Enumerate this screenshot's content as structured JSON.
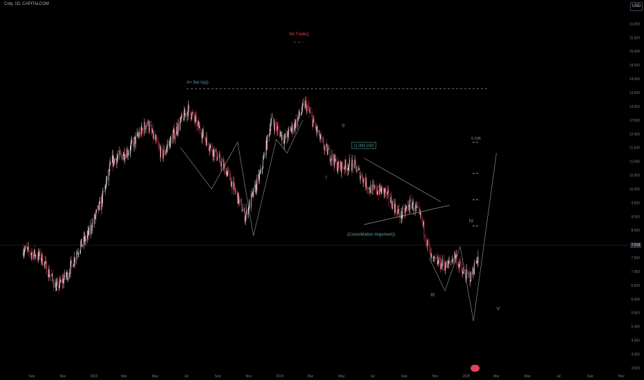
{
  "header": {
    "symbol_label": "Coty, 1D, CAPITALCOM",
    "currency_button": "USD"
  },
  "price_axis": {
    "ticks": [
      "16.000",
      "15.500",
      "15.000",
      "14.500",
      "14.000",
      "13.500",
      "13.000",
      "12.500",
      "12.000",
      "11.500",
      "11.000",
      "10.500",
      "10.000",
      "9.500",
      "9.000",
      "8.500",
      "8.000",
      "7.500",
      "7.000",
      "6.500",
      "6.000",
      "5.500",
      "5.000",
      "4.500",
      "4.000",
      "3.500"
    ],
    "current_price": "7.618"
  },
  "time_axis": {
    "labels": [
      "Sep",
      "Nov",
      "2023",
      "Mar",
      "May",
      "Jul",
      "Sep",
      "Nov",
      "2024",
      "Mar",
      "May",
      "Jul",
      "Sep",
      "Nov",
      "2025",
      "Mar",
      "May",
      "Jul",
      "Sep",
      "Nov"
    ]
  },
  "annotations": {
    "no_trade": "No Trade))",
    "a_setup": "A+ Set Up))",
    "price_label": "11.000 USD",
    "fib_label": "0.236",
    "consolidation": "(Consolidation Argument))",
    "wave_1": "I",
    "wave_2": "II",
    "wave_3": "III",
    "wave_4": "IV",
    "wave_5": "V"
  },
  "colors": {
    "background": "#000000",
    "candle_up": "#ffffff",
    "candle_down": "#e0445a",
    "zigzag": "#8a8a8a",
    "label_teal": "#5fa8b0",
    "label_red": "#e0445a",
    "label_green": "#7ca87c"
  },
  "chart_data": {
    "type": "candlestick",
    "title": "Coty, 1D, CAPITALCOM",
    "ylabel": "USD",
    "ylim": [
      3.5,
      16.25
    ],
    "current_price": 7.618,
    "close_path": [
      {
        "x": "2022-08-15",
        "y": 7.8
      },
      {
        "x": "2022-09-20",
        "y": 7.5
      },
      {
        "x": "2022-10-20",
        "y": 6.4
      },
      {
        "x": "2022-11-10",
        "y": 6.9
      },
      {
        "x": "2022-12-01",
        "y": 7.8
      },
      {
        "x": "2022-12-20",
        "y": 8.3
      },
      {
        "x": "2023-01-15",
        "y": 9.5
      },
      {
        "x": "2023-02-05",
        "y": 11.0
      },
      {
        "x": "2023-03-10",
        "y": 11.4
      },
      {
        "x": "2023-04-15",
        "y": 12.4
      },
      {
        "x": "2023-05-15",
        "y": 11.2
      },
      {
        "x": "2023-06-25",
        "y": 12.6
      },
      {
        "x": "2023-07-05",
        "y": 12.9
      },
      {
        "x": "2023-08-15",
        "y": 11.6
      },
      {
        "x": "2023-09-20",
        "y": 10.6
      },
      {
        "x": "2023-10-25",
        "y": 9.0
      },
      {
        "x": "2023-11-25",
        "y": 10.6
      },
      {
        "x": "2023-12-15",
        "y": 12.5
      },
      {
        "x": "2024-01-10",
        "y": 11.8
      },
      {
        "x": "2024-02-01",
        "y": 12.4
      },
      {
        "x": "2024-02-20",
        "y": 13.1
      },
      {
        "x": "2024-03-25",
        "y": 11.6
      },
      {
        "x": "2024-04-25",
        "y": 10.8
      },
      {
        "x": "2024-05-25",
        "y": 10.9
      },
      {
        "x": "2024-06-25",
        "y": 10.0
      },
      {
        "x": "2024-07-25",
        "y": 9.9
      },
      {
        "x": "2024-08-25",
        "y": 9.0
      },
      {
        "x": "2024-09-15",
        "y": 9.5
      },
      {
        "x": "2024-10-05",
        "y": 8.9
      },
      {
        "x": "2024-10-25",
        "y": 7.4
      },
      {
        "x": "2024-11-25",
        "y": 7.2
      },
      {
        "x": "2024-12-10",
        "y": 7.6
      },
      {
        "x": "2024-12-25",
        "y": 6.9
      },
      {
        "x": "2025-01-10",
        "y": 6.8
      },
      {
        "x": "2025-01-25",
        "y": 7.6
      }
    ],
    "zigzag_waves": [
      {
        "x": "2023-06-20",
        "y": 11.5
      },
      {
        "x": "2023-08-20",
        "y": 10.0
      },
      {
        "x": "2023-10-10",
        "y": 11.7
      },
      {
        "x": "2023-11-10",
        "y": 8.3
      },
      {
        "x": "2023-12-25",
        "y": 11.8
      },
      {
        "x": "2024-01-15",
        "y": 11.3
      },
      {
        "x": "2024-02-15",
        "y": 12.5
      }
    ],
    "projection": [
      {
        "x": "2024-10-20",
        "y": 7.5
      },
      {
        "x": "2024-11-20",
        "y": 6.3
      },
      {
        "x": "2024-12-20",
        "y": 7.9
      },
      {
        "x": "2025-01-15",
        "y": 5.2
      },
      {
        "x": "2025-03-01",
        "y": 11.3
      }
    ],
    "levels": [
      {
        "label": "A+ Set Up))",
        "y": 13.3
      },
      {
        "label": "No Trade))",
        "y": 14.9
      },
      {
        "label": "0.236",
        "y": 11.3
      }
    ]
  }
}
